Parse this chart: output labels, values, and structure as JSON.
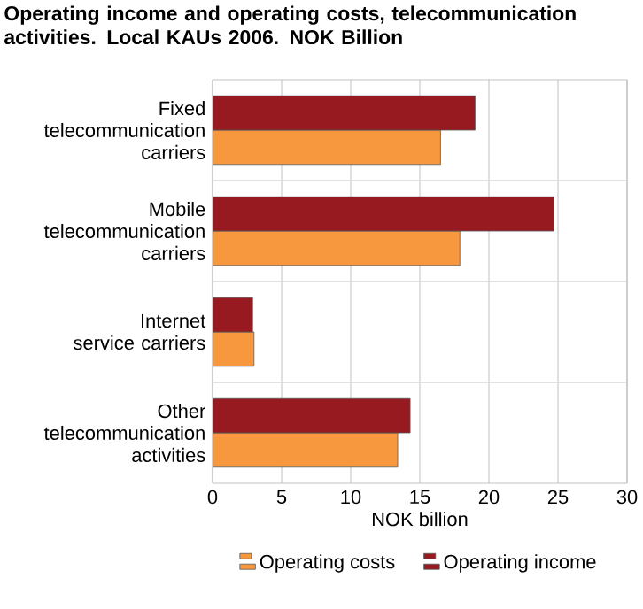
{
  "chart_data": {
    "type": "bar",
    "orientation": "horizontal",
    "title": "Operating income and operating costs, telecommunication activities. Local KAUs 2006. NOK Billion",
    "xlabel": "NOK billion",
    "categories": [
      "Fixed telecommunication carriers",
      "Mobile telecommunication carriers",
      "Internet service carriers",
      "Other telecommunication activities"
    ],
    "series": [
      {
        "name": "Operating costs",
        "color": "#f7983f",
        "values": [
          16.5,
          17.9,
          3.0,
          13.4
        ]
      },
      {
        "name": "Operating income",
        "color": "#961a1f",
        "values": [
          19.0,
          24.7,
          2.9,
          14.3
        ]
      }
    ],
    "xlim": [
      0,
      30
    ],
    "xticks": [
      0,
      5,
      10,
      15,
      20,
      25,
      30
    ],
    "grid": true,
    "legend": "bottom"
  }
}
